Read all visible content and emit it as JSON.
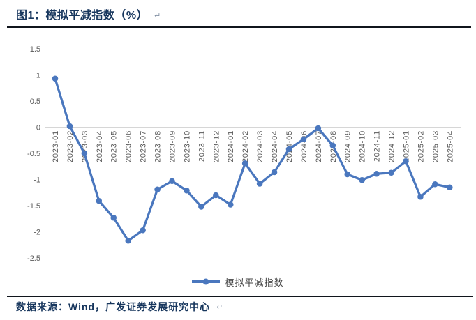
{
  "figure": {
    "title": "图1：模拟平减指数（%）",
    "return_mark": "↵",
    "source": "数据来源：Wind，广发证券发展研究中心"
  },
  "legend": {
    "label": "模拟平减指数"
  },
  "colors": {
    "line": "#4A77BE",
    "title_text": "#17365D",
    "axis_text": "#595959",
    "axis_line": "#D6D6D6",
    "legend_text": "#404040",
    "rule": "#10151C"
  },
  "chart_data": {
    "type": "line",
    "title": "模拟平减指数（%）",
    "xlabel": "",
    "ylabel": "",
    "ylim": [
      -2.5,
      1.5
    ],
    "yticks": [
      1.5,
      1,
      0.5,
      0,
      -0.5,
      -1,
      -1.5,
      -2,
      -2.5
    ],
    "grid": false,
    "legend_position": "bottom",
    "categories": [
      "2023-01",
      "2023-02",
      "2023-03",
      "2023-04",
      "2023-05",
      "2023-06",
      "2023-07",
      "2023-08",
      "2023-09",
      "2023-10",
      "2023-11",
      "2023-12",
      "2024-01",
      "2024-02",
      "2024-03",
      "2024-04",
      "2024-05",
      "2024-06",
      "2024-07",
      "2024-08",
      "2024-09",
      "2024-10",
      "2024-11",
      "2024-12",
      "2025-01",
      "2025-02",
      "2025-03",
      "2025-04"
    ],
    "series": [
      {
        "name": "模拟平减指数",
        "values": [
          0.93,
          0.02,
          -0.5,
          -1.41,
          -1.73,
          -2.17,
          -1.97,
          -1.19,
          -1.03,
          -1.21,
          -1.52,
          -1.3,
          -1.48,
          -0.69,
          -1.08,
          -0.86,
          -0.42,
          -0.23,
          -0.02,
          -0.35,
          -0.9,
          -1.01,
          -0.89,
          -0.87,
          -0.65,
          -1.33,
          -1.09,
          -1.15
        ]
      }
    ]
  }
}
